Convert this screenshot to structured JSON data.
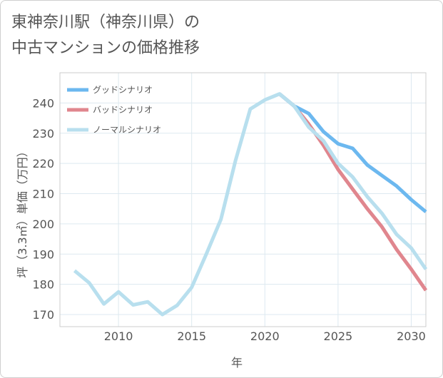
{
  "title": {
    "line1": "東神奈川駅（神奈川県）の",
    "line2": "中古マンションの価格推移"
  },
  "chart_data": {
    "type": "line",
    "title": "東神奈川駅（神奈川県）の中古マンションの価格推移",
    "xlabel": "年",
    "ylabel": "坪（3.3㎡）単価（万円）",
    "xlim": [
      2006,
      2031
    ],
    "ylim": [
      166,
      250
    ],
    "xticks": [
      "2010",
      "2015",
      "2020",
      "2025",
      "2030"
    ],
    "yticks": [
      "170",
      "180",
      "190",
      "200",
      "210",
      "220",
      "230",
      "240"
    ],
    "legend_position": "top-left",
    "series": [
      {
        "name": "グッドシナリオ",
        "color": "#6cb8ef",
        "x": [
          2021,
          2022,
          2023,
          2024,
          2025,
          2026,
          2027,
          2028,
          2029,
          2030,
          2031
        ],
        "values": [
          243,
          239,
          236.5,
          230.5,
          226.5,
          225,
          219.5,
          216,
          212.5,
          208,
          204
        ]
      },
      {
        "name": "バッドシナリオ",
        "color": "#e0868e",
        "x": [
          2021,
          2022,
          2023,
          2024,
          2025,
          2026,
          2027,
          2028,
          2029,
          2030,
          2031
        ],
        "values": [
          243,
          239,
          233,
          226,
          218,
          211.5,
          205,
          199,
          191.5,
          185,
          178
        ]
      },
      {
        "name": "ノーマルシナリオ",
        "color": "#b8dfee",
        "x": [
          2007,
          2008,
          2009,
          2010,
          2011,
          2012,
          2013,
          2014,
          2015,
          2016,
          2017,
          2018,
          2019,
          2020,
          2021,
          2022,
          2023,
          2024,
          2025,
          2026,
          2027,
          2028,
          2029,
          2030,
          2031
        ],
        "values": [
          184.5,
          180.5,
          173.5,
          177.5,
          173.2,
          174.2,
          170,
          173,
          179,
          190,
          201.5,
          221,
          238,
          241,
          243,
          239,
          232,
          227.5,
          220,
          215.5,
          209,
          203.5,
          196.5,
          192,
          185
        ]
      }
    ]
  }
}
